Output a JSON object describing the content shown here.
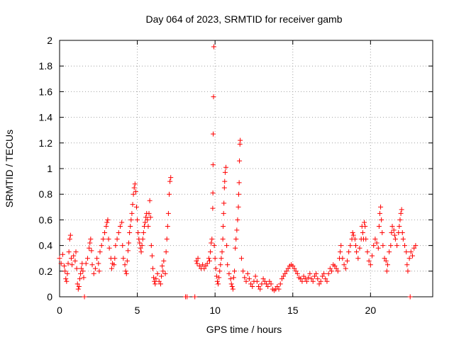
{
  "chart_data": {
    "type": "scatter",
    "title": "Day 064 of 2023, SRMTID for receiver gamb",
    "xlabel": "GPS time / hours",
    "ylabel": "SRMTID / TECUs",
    "xlim": [
      0,
      24
    ],
    "ylim": [
      0,
      2
    ],
    "xticks": [
      0,
      5,
      10,
      15,
      20
    ],
    "yticks": [
      0,
      0.2,
      0.4,
      0.6,
      0.8,
      1,
      1.2,
      1.4,
      1.6,
      1.8,
      2
    ],
    "grid": true,
    "marker": "+",
    "color": "#ff0000",
    "series": [
      {
        "name": "SRMTID",
        "points": [
          [
            0.0,
            0.3
          ],
          [
            0.1,
            0.26
          ],
          [
            0.2,
            0.33
          ],
          [
            0.3,
            0.24
          ],
          [
            0.35,
            0.2
          ],
          [
            0.4,
            0.14
          ],
          [
            0.45,
            0.12
          ],
          [
            0.5,
            0.18
          ],
          [
            0.55,
            0.26
          ],
          [
            0.6,
            0.35
          ],
          [
            0.65,
            0.45
          ],
          [
            0.7,
            0.48
          ],
          [
            0.75,
            0.3
          ],
          [
            0.8,
            0.25
          ],
          [
            0.9,
            0.32
          ],
          [
            1.0,
            0.28
          ],
          [
            1.05,
            0.35
          ],
          [
            1.1,
            0.22
          ],
          [
            1.15,
            0.1
          ],
          [
            1.2,
            0.06
          ],
          [
            1.25,
            0.08
          ],
          [
            1.3,
            0.14
          ],
          [
            1.35,
            0.18
          ],
          [
            1.4,
            0.22
          ],
          [
            1.45,
            0.26
          ],
          [
            1.5,
            0.2
          ],
          [
            1.55,
            0.15
          ],
          [
            1.6,
            0.0
          ],
          [
            1.7,
            0.26
          ],
          [
            1.8,
            0.3
          ],
          [
            1.9,
            0.38
          ],
          [
            1.95,
            0.42
          ],
          [
            2.0,
            0.45
          ],
          [
            2.05,
            0.36
          ],
          [
            2.1,
            0.25
          ],
          [
            2.2,
            0.18
          ],
          [
            2.3,
            0.22
          ],
          [
            2.4,
            0.3
          ],
          [
            2.5,
            0.26
          ],
          [
            2.55,
            0.2
          ],
          [
            2.6,
            0.35
          ],
          [
            2.7,
            0.4
          ],
          [
            2.8,
            0.45
          ],
          [
            2.9,
            0.5
          ],
          [
            3.0,
            0.55
          ],
          [
            3.05,
            0.58
          ],
          [
            3.1,
            0.6
          ],
          [
            3.15,
            0.45
          ],
          [
            3.2,
            0.38
          ],
          [
            3.3,
            0.3
          ],
          [
            3.35,
            0.22
          ],
          [
            3.4,
            0.26
          ],
          [
            3.5,
            0.25
          ],
          [
            3.55,
            0.3
          ],
          [
            3.6,
            0.4
          ],
          [
            3.7,
            0.45
          ],
          [
            3.8,
            0.5
          ],
          [
            3.9,
            0.55
          ],
          [
            4.0,
            0.58
          ],
          [
            4.05,
            0.4
          ],
          [
            4.1,
            0.3
          ],
          [
            4.2,
            0.25
          ],
          [
            4.25,
            0.2
          ],
          [
            4.3,
            0.18
          ],
          [
            4.35,
            0.28
          ],
          [
            4.4,
            0.36
          ],
          [
            4.45,
            0.42
          ],
          [
            4.5,
            0.5
          ],
          [
            4.55,
            0.55
          ],
          [
            4.6,
            0.6
          ],
          [
            4.65,
            0.65
          ],
          [
            4.7,
            0.72
          ],
          [
            4.75,
            0.8
          ],
          [
            4.8,
            0.85
          ],
          [
            4.85,
            0.88
          ],
          [
            4.9,
            0.82
          ],
          [
            4.95,
            0.7
          ],
          [
            5.0,
            0.6
          ],
          [
            5.05,
            0.5
          ],
          [
            5.1,
            0.45
          ],
          [
            5.15,
            0.42
          ],
          [
            5.2,
            0.38
          ],
          [
            5.25,
            0.35
          ],
          [
            5.3,
            0.4
          ],
          [
            5.35,
            0.45
          ],
          [
            5.4,
            0.5
          ],
          [
            5.45,
            0.55
          ],
          [
            5.5,
            0.58
          ],
          [
            5.55,
            0.62
          ],
          [
            5.6,
            0.65
          ],
          [
            5.65,
            0.6
          ],
          [
            5.7,
            0.55
          ],
          [
            5.75,
            0.65
          ],
          [
            5.8,
            0.75
          ],
          [
            5.85,
            0.62
          ],
          [
            5.9,
            0.4
          ],
          [
            5.95,
            0.32
          ],
          [
            6.0,
            0.22
          ],
          [
            6.05,
            0.15
          ],
          [
            6.1,
            0.12
          ],
          [
            6.15,
            0.1
          ],
          [
            6.2,
            0.14
          ],
          [
            6.3,
            0.18
          ],
          [
            6.4,
            0.12
          ],
          [
            6.5,
            0.1
          ],
          [
            6.55,
            0.16
          ],
          [
            6.6,
            0.24
          ],
          [
            6.65,
            0.2
          ],
          [
            6.7,
            0.28
          ],
          [
            6.8,
            0.18
          ],
          [
            6.85,
            0.35
          ],
          [
            6.9,
            0.45
          ],
          [
            6.95,
            0.55
          ],
          [
            7.0,
            0.65
          ],
          [
            7.05,
            0.8
          ],
          [
            7.1,
            0.9
          ],
          [
            7.15,
            0.93
          ],
          [
            8.1,
            0.0
          ],
          [
            8.2,
            0.0
          ],
          [
            8.7,
            0.0
          ],
          [
            8.8,
            0.28
          ],
          [
            8.85,
            0.26
          ],
          [
            8.9,
            0.3
          ],
          [
            9.0,
            0.24
          ],
          [
            9.1,
            0.22
          ],
          [
            9.2,
            0.25
          ],
          [
            9.3,
            0.22
          ],
          [
            9.4,
            0.24
          ],
          [
            9.5,
            0.26
          ],
          [
            9.6,
            0.3
          ],
          [
            9.65,
            0.28
          ],
          [
            9.7,
            0.35
          ],
          [
            9.75,
            0.42
          ],
          [
            9.8,
            0.45
          ],
          [
            9.85,
            0.69
          ],
          [
            9.86,
            0.81
          ],
          [
            9.87,
            1.03
          ],
          [
            9.88,
            1.27
          ],
          [
            9.9,
            1.56
          ],
          [
            9.92,
            1.95
          ],
          [
            9.95,
            0.4
          ],
          [
            10.0,
            0.3
          ],
          [
            10.05,
            0.22
          ],
          [
            10.1,
            0.16
          ],
          [
            10.15,
            0.12
          ],
          [
            10.2,
            0.1
          ],
          [
            10.25,
            0.15
          ],
          [
            10.3,
            0.2
          ],
          [
            10.35,
            0.25
          ],
          [
            10.4,
            0.3
          ],
          [
            10.45,
            0.35
          ],
          [
            10.5,
            0.45
          ],
          [
            10.52,
            0.55
          ],
          [
            10.55,
            0.65
          ],
          [
            10.57,
            0.73
          ],
          [
            10.6,
            0.85
          ],
          [
            10.62,
            0.9
          ],
          [
            10.65,
            0.97
          ],
          [
            10.7,
            1.01
          ],
          [
            10.75,
            0.4
          ],
          [
            10.8,
            0.25
          ],
          [
            10.9,
            0.18
          ],
          [
            11.0,
            0.14
          ],
          [
            11.05,
            0.1
          ],
          [
            11.1,
            0.08
          ],
          [
            11.15,
            0.06
          ],
          [
            11.2,
            0.15
          ],
          [
            11.25,
            0.2
          ],
          [
            11.3,
            0.38
          ],
          [
            11.35,
            0.45
          ],
          [
            11.4,
            0.52
          ],
          [
            11.45,
            0.6
          ],
          [
            11.5,
            0.7
          ],
          [
            11.52,
            0.8
          ],
          [
            11.55,
            0.89
          ],
          [
            11.57,
            1.06
          ],
          [
            11.6,
            1.19
          ],
          [
            11.62,
            1.22
          ],
          [
            11.7,
            0.3
          ],
          [
            11.8,
            0.2
          ],
          [
            11.9,
            0.15
          ],
          [
            12.0,
            0.12
          ],
          [
            12.1,
            0.18
          ],
          [
            12.2,
            0.14
          ],
          [
            12.3,
            0.1
          ],
          [
            12.4,
            0.08
          ],
          [
            12.5,
            0.12
          ],
          [
            12.6,
            0.16
          ],
          [
            12.7,
            0.12
          ],
          [
            12.8,
            0.08
          ],
          [
            12.9,
            0.06
          ],
          [
            13.0,
            0.1
          ],
          [
            13.1,
            0.14
          ],
          [
            13.2,
            0.12
          ],
          [
            13.3,
            0.1
          ],
          [
            13.4,
            0.08
          ],
          [
            13.5,
            0.12
          ],
          [
            13.6,
            0.1
          ],
          [
            13.7,
            0.06
          ],
          [
            13.8,
            0.05
          ],
          [
            13.9,
            0.06
          ],
          [
            14.0,
            0.08
          ],
          [
            14.1,
            0.06
          ],
          [
            14.2,
            0.1
          ],
          [
            14.3,
            0.14
          ],
          [
            14.4,
            0.16
          ],
          [
            14.5,
            0.18
          ],
          [
            14.6,
            0.2
          ],
          [
            14.7,
            0.22
          ],
          [
            14.8,
            0.24
          ],
          [
            14.9,
            0.25
          ],
          [
            15.0,
            0.24
          ],
          [
            15.1,
            0.22
          ],
          [
            15.2,
            0.2
          ],
          [
            15.3,
            0.18
          ],
          [
            15.4,
            0.15
          ],
          [
            15.5,
            0.14
          ],
          [
            15.6,
            0.12
          ],
          [
            15.7,
            0.16
          ],
          [
            15.8,
            0.14
          ],
          [
            15.9,
            0.12
          ],
          [
            16.0,
            0.15
          ],
          [
            16.1,
            0.18
          ],
          [
            16.2,
            0.14
          ],
          [
            16.3,
            0.12
          ],
          [
            16.4,
            0.16
          ],
          [
            16.5,
            0.18
          ],
          [
            16.6,
            0.14
          ],
          [
            16.7,
            0.1
          ],
          [
            16.8,
            0.12
          ],
          [
            16.9,
            0.16
          ],
          [
            17.0,
            0.18
          ],
          [
            17.1,
            0.14
          ],
          [
            17.2,
            0.12
          ],
          [
            17.3,
            0.18
          ],
          [
            17.4,
            0.22
          ],
          [
            17.5,
            0.2
          ],
          [
            17.6,
            0.25
          ],
          [
            17.7,
            0.24
          ],
          [
            17.8,
            0.22
          ],
          [
            17.9,
            0.2
          ],
          [
            18.0,
            0.3
          ],
          [
            18.05,
            0.35
          ],
          [
            18.1,
            0.4
          ],
          [
            18.2,
            0.3
          ],
          [
            18.3,
            0.25
          ],
          [
            18.4,
            0.22
          ],
          [
            18.5,
            0.28
          ],
          [
            18.6,
            0.35
          ],
          [
            18.7,
            0.4
          ],
          [
            18.8,
            0.45
          ],
          [
            18.85,
            0.5
          ],
          [
            18.9,
            0.48
          ],
          [
            19.0,
            0.45
          ],
          [
            19.05,
            0.4
          ],
          [
            19.1,
            0.35
          ],
          [
            19.2,
            0.3
          ],
          [
            19.3,
            0.38
          ],
          [
            19.4,
            0.45
          ],
          [
            19.45,
            0.55
          ],
          [
            19.5,
            0.5
          ],
          [
            19.55,
            0.45
          ],
          [
            19.6,
            0.58
          ],
          [
            19.65,
            0.55
          ],
          [
            19.7,
            0.45
          ],
          [
            19.8,
            0.35
          ],
          [
            19.9,
            0.28
          ],
          [
            20.0,
            0.25
          ],
          [
            20.1,
            0.32
          ],
          [
            20.2,
            0.4
          ],
          [
            20.3,
            0.45
          ],
          [
            20.4,
            0.42
          ],
          [
            20.5,
            0.38
          ],
          [
            20.55,
            0.55
          ],
          [
            20.6,
            0.65
          ],
          [
            20.65,
            0.7
          ],
          [
            20.7,
            0.6
          ],
          [
            20.75,
            0.5
          ],
          [
            20.8,
            0.4
          ],
          [
            20.9,
            0.3
          ],
          [
            21.0,
            0.28
          ],
          [
            21.05,
            0.2
          ],
          [
            21.1,
            0.25
          ],
          [
            21.2,
            0.35
          ],
          [
            21.3,
            0.4
          ],
          [
            21.35,
            0.5
          ],
          [
            21.4,
            0.55
          ],
          [
            21.5,
            0.52
          ],
          [
            21.55,
            0.48
          ],
          [
            21.6,
            0.45
          ],
          [
            21.7,
            0.4
          ],
          [
            21.8,
            0.5
          ],
          [
            21.85,
            0.55
          ],
          [
            21.9,
            0.6
          ],
          [
            21.95,
            0.65
          ],
          [
            22.0,
            0.68
          ],
          [
            22.05,
            0.5
          ],
          [
            22.1,
            0.45
          ],
          [
            22.2,
            0.4
          ],
          [
            22.3,
            0.35
          ],
          [
            22.35,
            0.25
          ],
          [
            22.4,
            0.2
          ],
          [
            22.5,
            0.3
          ],
          [
            22.55,
            0.0
          ],
          [
            22.6,
            0.35
          ],
          [
            22.7,
            0.32
          ],
          [
            22.8,
            0.38
          ],
          [
            22.9,
            0.4
          ]
        ]
      }
    ]
  }
}
